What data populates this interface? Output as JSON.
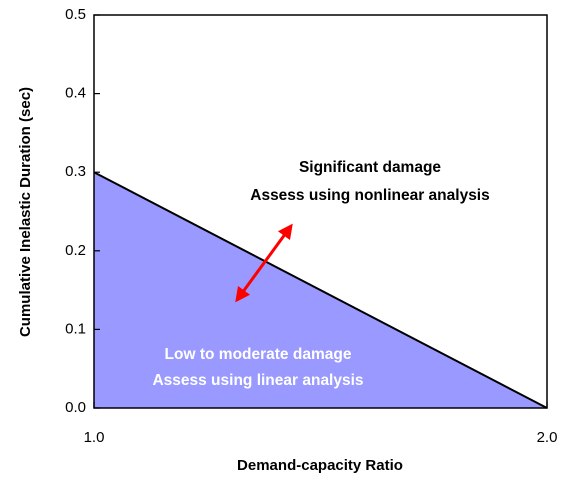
{
  "chart_data": {
    "type": "area",
    "x": [
      1.0,
      2.0
    ],
    "series": [
      {
        "name": "Low to moderate damage",
        "color": "#9999ff",
        "values": [
          0.3,
          0.0
        ]
      }
    ],
    "xlim": [
      1.0,
      2.0
    ],
    "xticks": [
      {
        "value": 1.0,
        "label": "1.0"
      },
      {
        "value": 2.0,
        "label": "2.0"
      }
    ],
    "ylim": [
      0,
      0.5
    ],
    "yticks": [
      {
        "value": 0,
        "label": "0.0"
      },
      0.1,
      0.2,
      0.3,
      0.4,
      0.5
    ],
    "xlabel": "Demand-capacity Ratio",
    "ylabel": "Cumulative Inelastic Duration (sec)",
    "annotations": [
      "Significant damage",
      "Assess using nonlinear analysis",
      "Low to moderate damage",
      "Assess using linear analysis"
    ]
  }
}
